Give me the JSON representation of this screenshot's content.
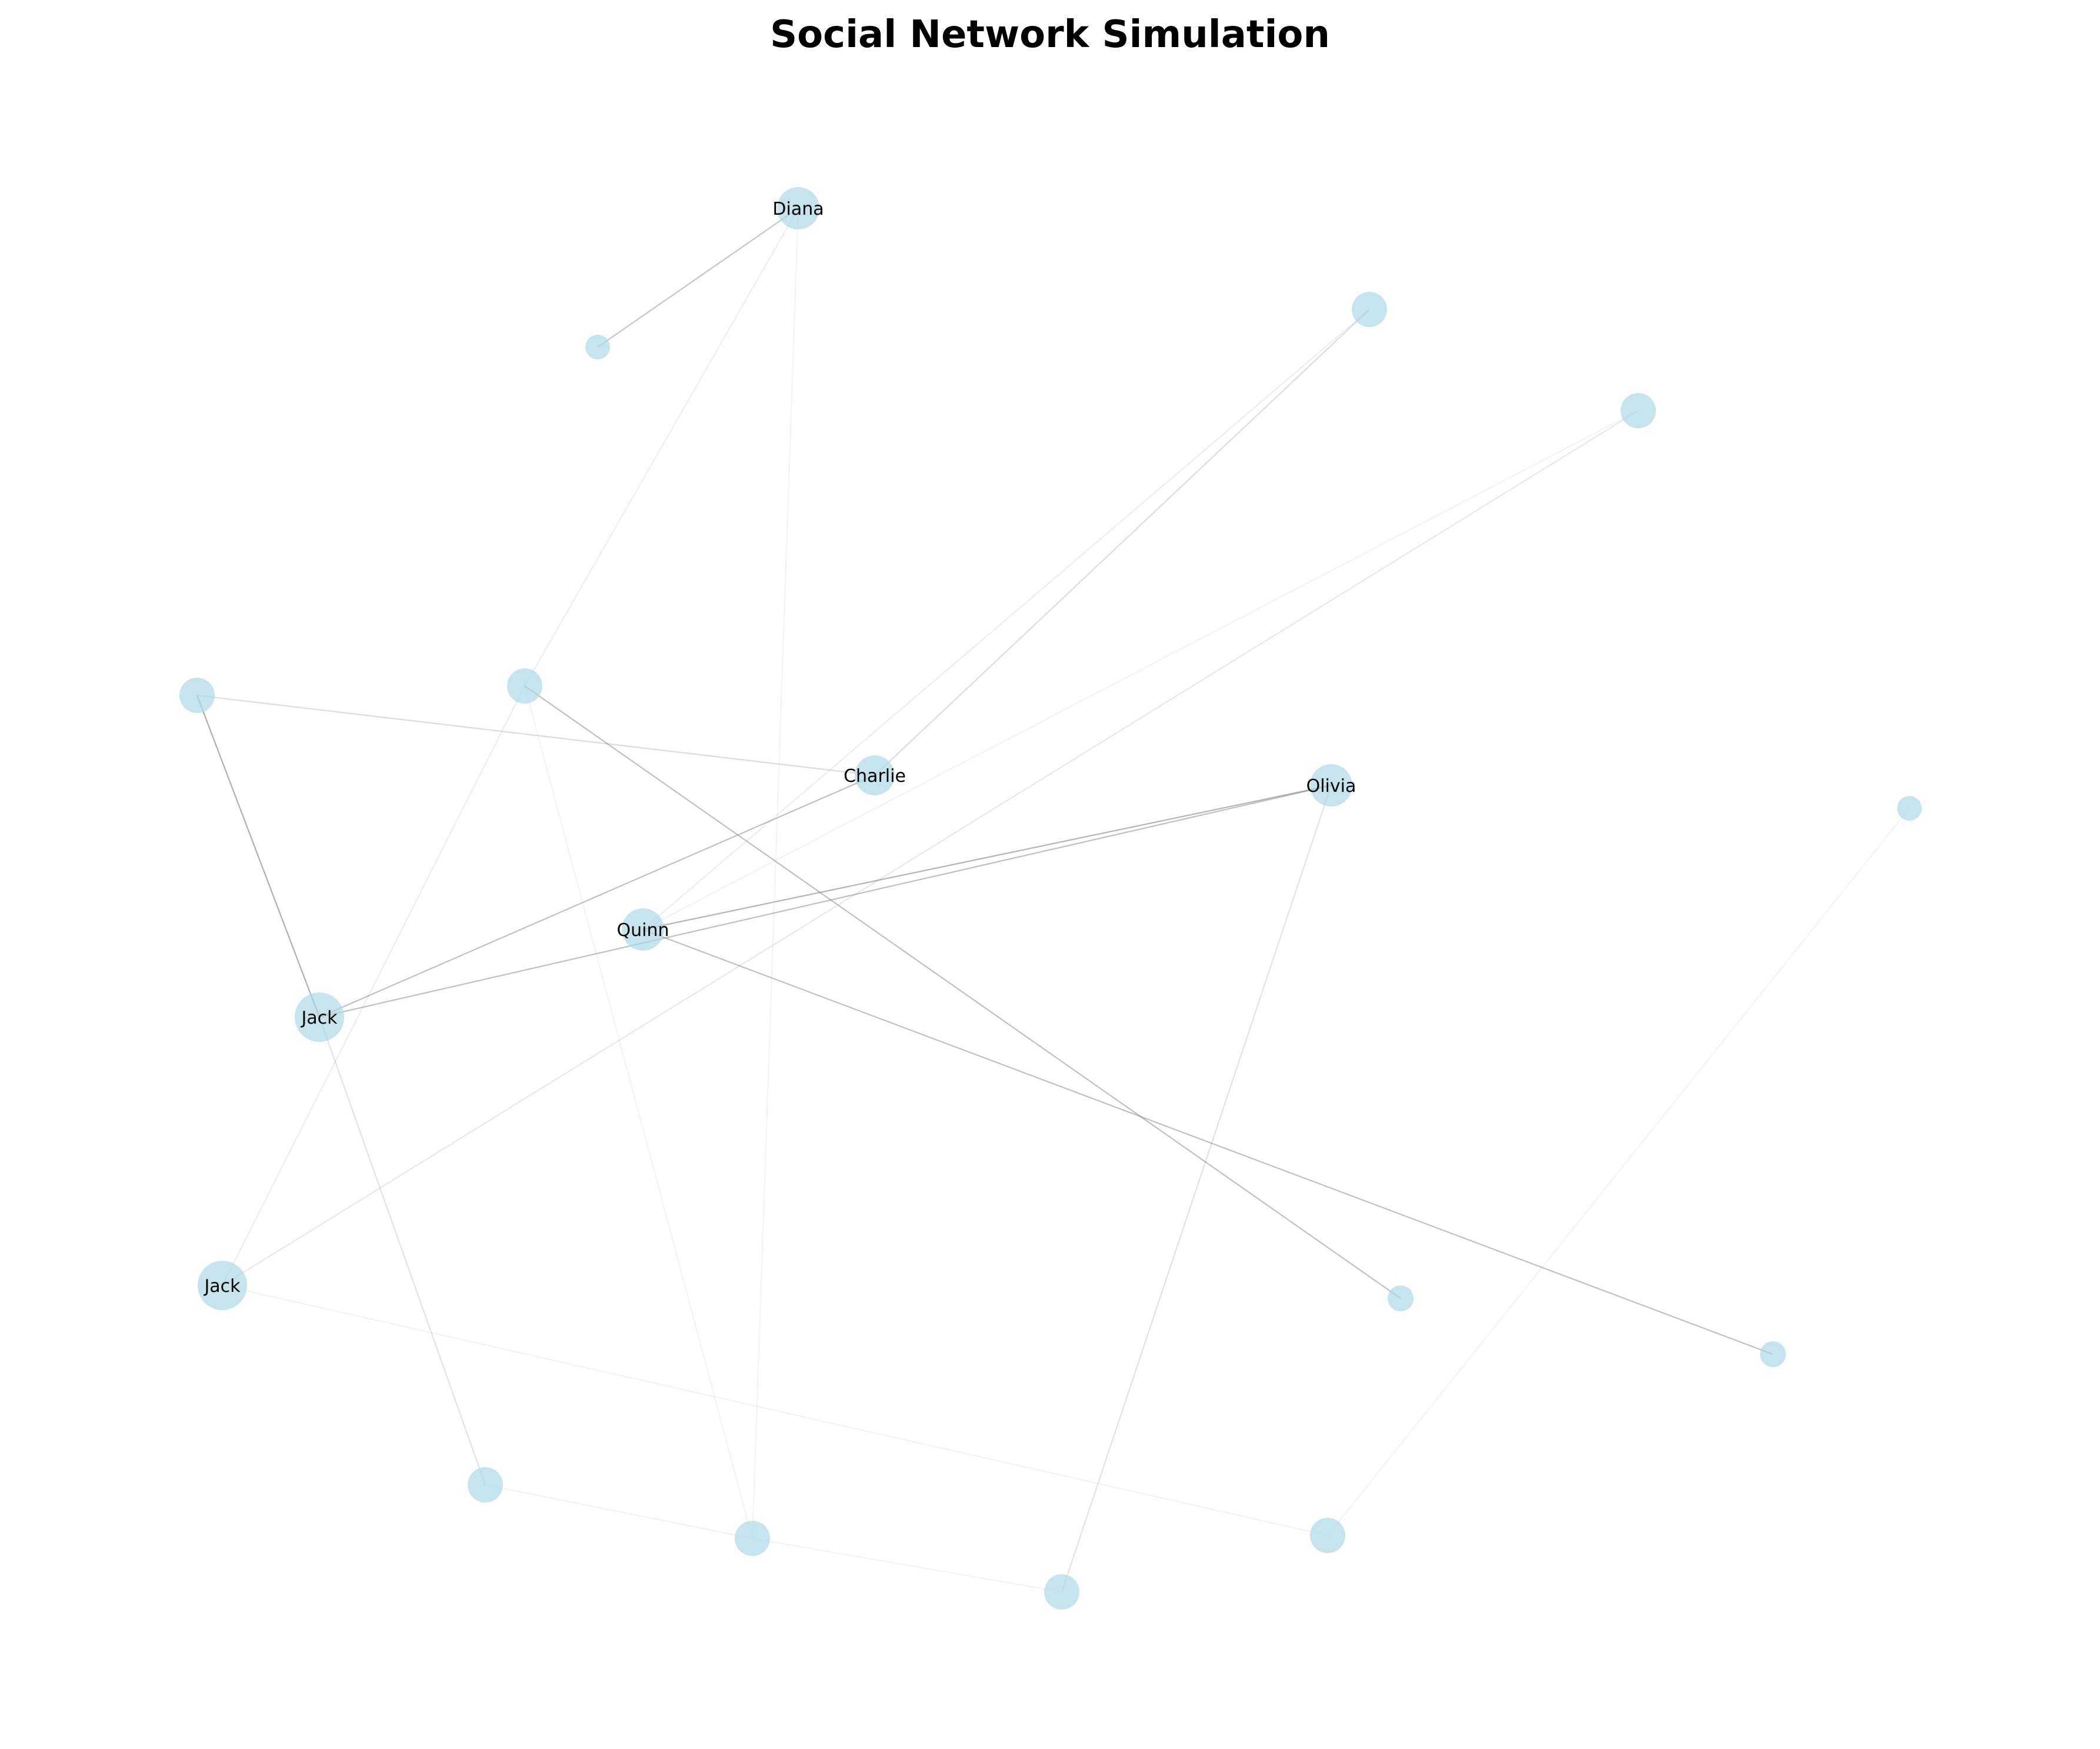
{
  "title": "Social Network Simulation",
  "colors": {
    "node": "#add8e6",
    "edge": "#808080",
    "label": "#000000"
  },
  "nodes": [
    {
      "id": "n01",
      "label": "Diana"
    },
    {
      "id": "n02",
      "label": ""
    },
    {
      "id": "n03",
      "label": ""
    },
    {
      "id": "n04",
      "label": ""
    },
    {
      "id": "n05",
      "label": ""
    },
    {
      "id": "n06",
      "label": ""
    },
    {
      "id": "n07",
      "label": "Charlie"
    },
    {
      "id": "n08",
      "label": "Olivia"
    },
    {
      "id": "n09",
      "label": ""
    },
    {
      "id": "n10",
      "label": "Quinn"
    },
    {
      "id": "n11",
      "label": "Jack"
    },
    {
      "id": "n12",
      "label": "Jack"
    },
    {
      "id": "n13",
      "label": ""
    },
    {
      "id": "n14",
      "label": ""
    },
    {
      "id": "n15",
      "label": ""
    },
    {
      "id": "n16",
      "label": ""
    },
    {
      "id": "n17",
      "label": ""
    },
    {
      "id": "n18",
      "label": ""
    }
  ],
  "edges": [
    {
      "source": "n01",
      "target": "n02",
      "weight": 0.5
    },
    {
      "source": "n01",
      "target": "n06",
      "weight": 0.15
    },
    {
      "source": "n01",
      "target": "n16",
      "weight": 0.1
    },
    {
      "source": "n03",
      "target": "n07",
      "weight": 0.3
    },
    {
      "source": "n03",
      "target": "n10",
      "weight": 0.15
    },
    {
      "source": "n04",
      "target": "n12",
      "weight": 0.2
    },
    {
      "source": "n04",
      "target": "n10",
      "weight": 0.1
    },
    {
      "source": "n05",
      "target": "n07",
      "weight": 0.3
    },
    {
      "source": "n05",
      "target": "n11",
      "weight": 0.7
    },
    {
      "source": "n06",
      "target": "n13",
      "weight": 0.55
    },
    {
      "source": "n06",
      "target": "n12",
      "weight": 0.15
    },
    {
      "source": "n06",
      "target": "n16",
      "weight": 0.1
    },
    {
      "source": "n07",
      "target": "n11",
      "weight": 0.55
    },
    {
      "source": "n08",
      "target": "n10",
      "weight": 0.65
    },
    {
      "source": "n08",
      "target": "n11",
      "weight": 0.55
    },
    {
      "source": "n08",
      "target": "n17",
      "weight": 0.25
    },
    {
      "source": "n09",
      "target": "n18",
      "weight": 0.1
    },
    {
      "source": "n10",
      "target": "n14",
      "weight": 0.55
    },
    {
      "source": "n11",
      "target": "n15",
      "weight": 0.25
    },
    {
      "source": "n12",
      "target": "n18",
      "weight": 0.1
    },
    {
      "source": "n15",
      "target": "n16",
      "weight": 0.1
    },
    {
      "source": "n16",
      "target": "n17",
      "weight": 0.1
    }
  ]
}
